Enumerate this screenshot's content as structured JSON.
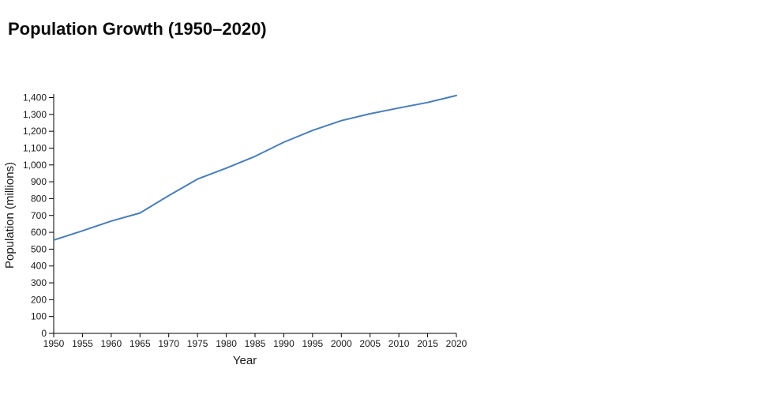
{
  "header": {
    "title": "Population Growth (1950–2020)"
  },
  "colors": {
    "background": "#ffffff",
    "line": "#4a7eb8",
    "axis": "#000000",
    "tick_text": "#1a1a1a",
    "title_text": "#0b0b0b"
  },
  "chart_data": {
    "type": "line",
    "title": "Population Growth (1950–2020)",
    "xlabel": "Year",
    "ylabel": "Population (millions)",
    "x": [
      1950,
      1955,
      1960,
      1965,
      1970,
      1975,
      1980,
      1985,
      1990,
      1995,
      2000,
      2005,
      2010,
      2015,
      2020
    ],
    "series": [
      {
        "name": "Population (millions)",
        "values": [
          554,
          609,
          667,
          715,
          818,
          916,
          981,
          1051,
          1135,
          1205,
          1263,
          1304,
          1338,
          1371,
          1412
        ]
      }
    ],
    "xlim": [
      1950,
      2020
    ],
    "ylim": [
      0,
      1400
    ],
    "x_tick_step": 5,
    "y_tick_step": 100,
    "x_tick_labels": [
      "1950",
      "1955",
      "1960",
      "1965",
      "1970",
      "1975",
      "1980",
      "1985",
      "1990",
      "1995",
      "2000",
      "2005",
      "2010",
      "2015",
      "2020"
    ],
    "y_tick_labels": [
      "0",
      "100",
      "200",
      "300",
      "400",
      "500",
      "600",
      "700",
      "800",
      "900",
      "1,000",
      "1,100",
      "1,200",
      "1,300",
      "1,400"
    ],
    "grid": false,
    "legend": false,
    "line_color": "#4a7eb8",
    "axis_color": "#000000"
  }
}
